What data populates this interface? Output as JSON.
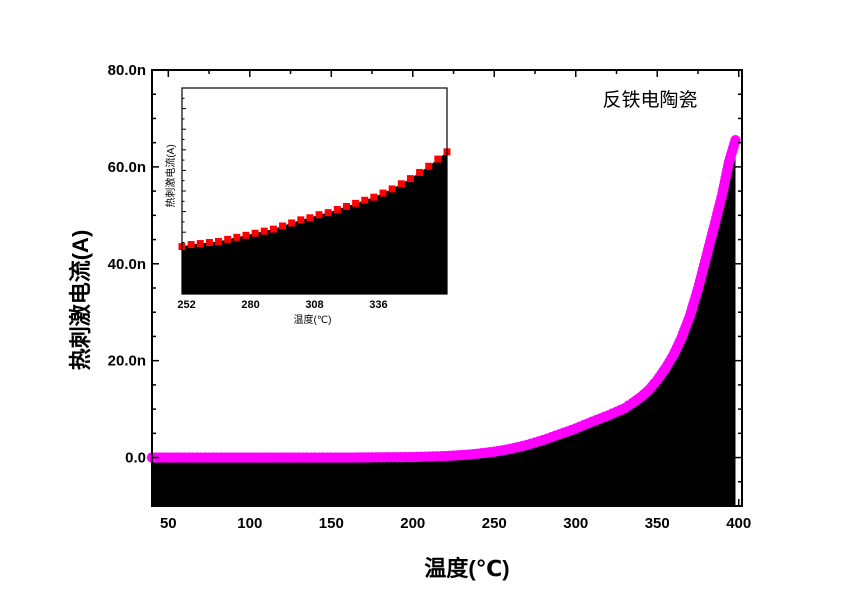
{
  "chart_data": [
    {
      "type": "scatter",
      "title": "",
      "annotation": "反铁电陶瓷",
      "xlabel": "温度(℃)",
      "ylabel": "热刺激电流(A)",
      "xlim": [
        40,
        402
      ],
      "ylim": [
        -10,
        80
      ],
      "x_ticks": [
        50,
        100,
        150,
        200,
        250,
        300,
        350,
        400
      ],
      "y_ticks": [
        0,
        20,
        40,
        60,
        80
      ],
      "y_tick_labels": [
        "0.0",
        "20.0n",
        "40.0n",
        "60.0n",
        "80.0n"
      ],
      "fill_under_curve": true,
      "colors": {
        "marker": "#ff00ff",
        "fill": "#000000"
      },
      "series": [
        {
          "x": [
            40,
            60,
            80,
            100,
            120,
            140,
            160,
            180,
            200,
            210,
            220,
            230,
            240,
            250,
            260,
            270,
            280,
            290,
            300,
            310,
            320,
            330,
            335,
            340,
            345,
            350,
            355,
            360,
            365,
            370,
            375,
            380,
            385,
            390,
            394,
            398
          ],
          "y": [
            0,
            0,
            0,
            0,
            0,
            0,
            0,
            0.05,
            0.1,
            0.2,
            0.3,
            0.5,
            0.8,
            1.2,
            1.8,
            2.6,
            3.6,
            4.8,
            6.0,
            7.4,
            8.7,
            10.2,
            11.3,
            12.5,
            14.0,
            16.0,
            18.4,
            21.2,
            24.8,
            29.2,
            34.8,
            41.3,
            47.8,
            54.5,
            61.0,
            65.5
          ]
        }
      ]
    },
    {
      "type": "scatter",
      "title": "",
      "xlabel": "温度(℃)",
      "ylabel": "热刺激电流(A)",
      "xlim": [
        250,
        366
      ],
      "ylim": [
        0,
        100
      ],
      "x_ticks": [
        252,
        280,
        308,
        336
      ],
      "fill_under_curve": true,
      "colors": {
        "marker": "#ff0000",
        "fill": "#000000"
      },
      "series": [
        {
          "x": [
            250,
            254,
            258,
            262,
            266,
            270,
            274,
            278,
            282,
            286,
            290,
            294,
            298,
            302,
            306,
            310,
            314,
            318,
            322,
            326,
            330,
            334,
            338,
            342,
            346,
            350,
            354,
            358,
            362,
            366
          ],
          "y": [
            23,
            24,
            24.5,
            25,
            25.5,
            26.5,
            27.5,
            28.5,
            29.5,
            30.5,
            31.5,
            33,
            34.5,
            36,
            37,
            38.5,
            39.5,
            41,
            42.5,
            44,
            45.5,
            47,
            49,
            51,
            53.5,
            56,
            59,
            62,
            65.5,
            69
          ]
        }
      ]
    }
  ]
}
